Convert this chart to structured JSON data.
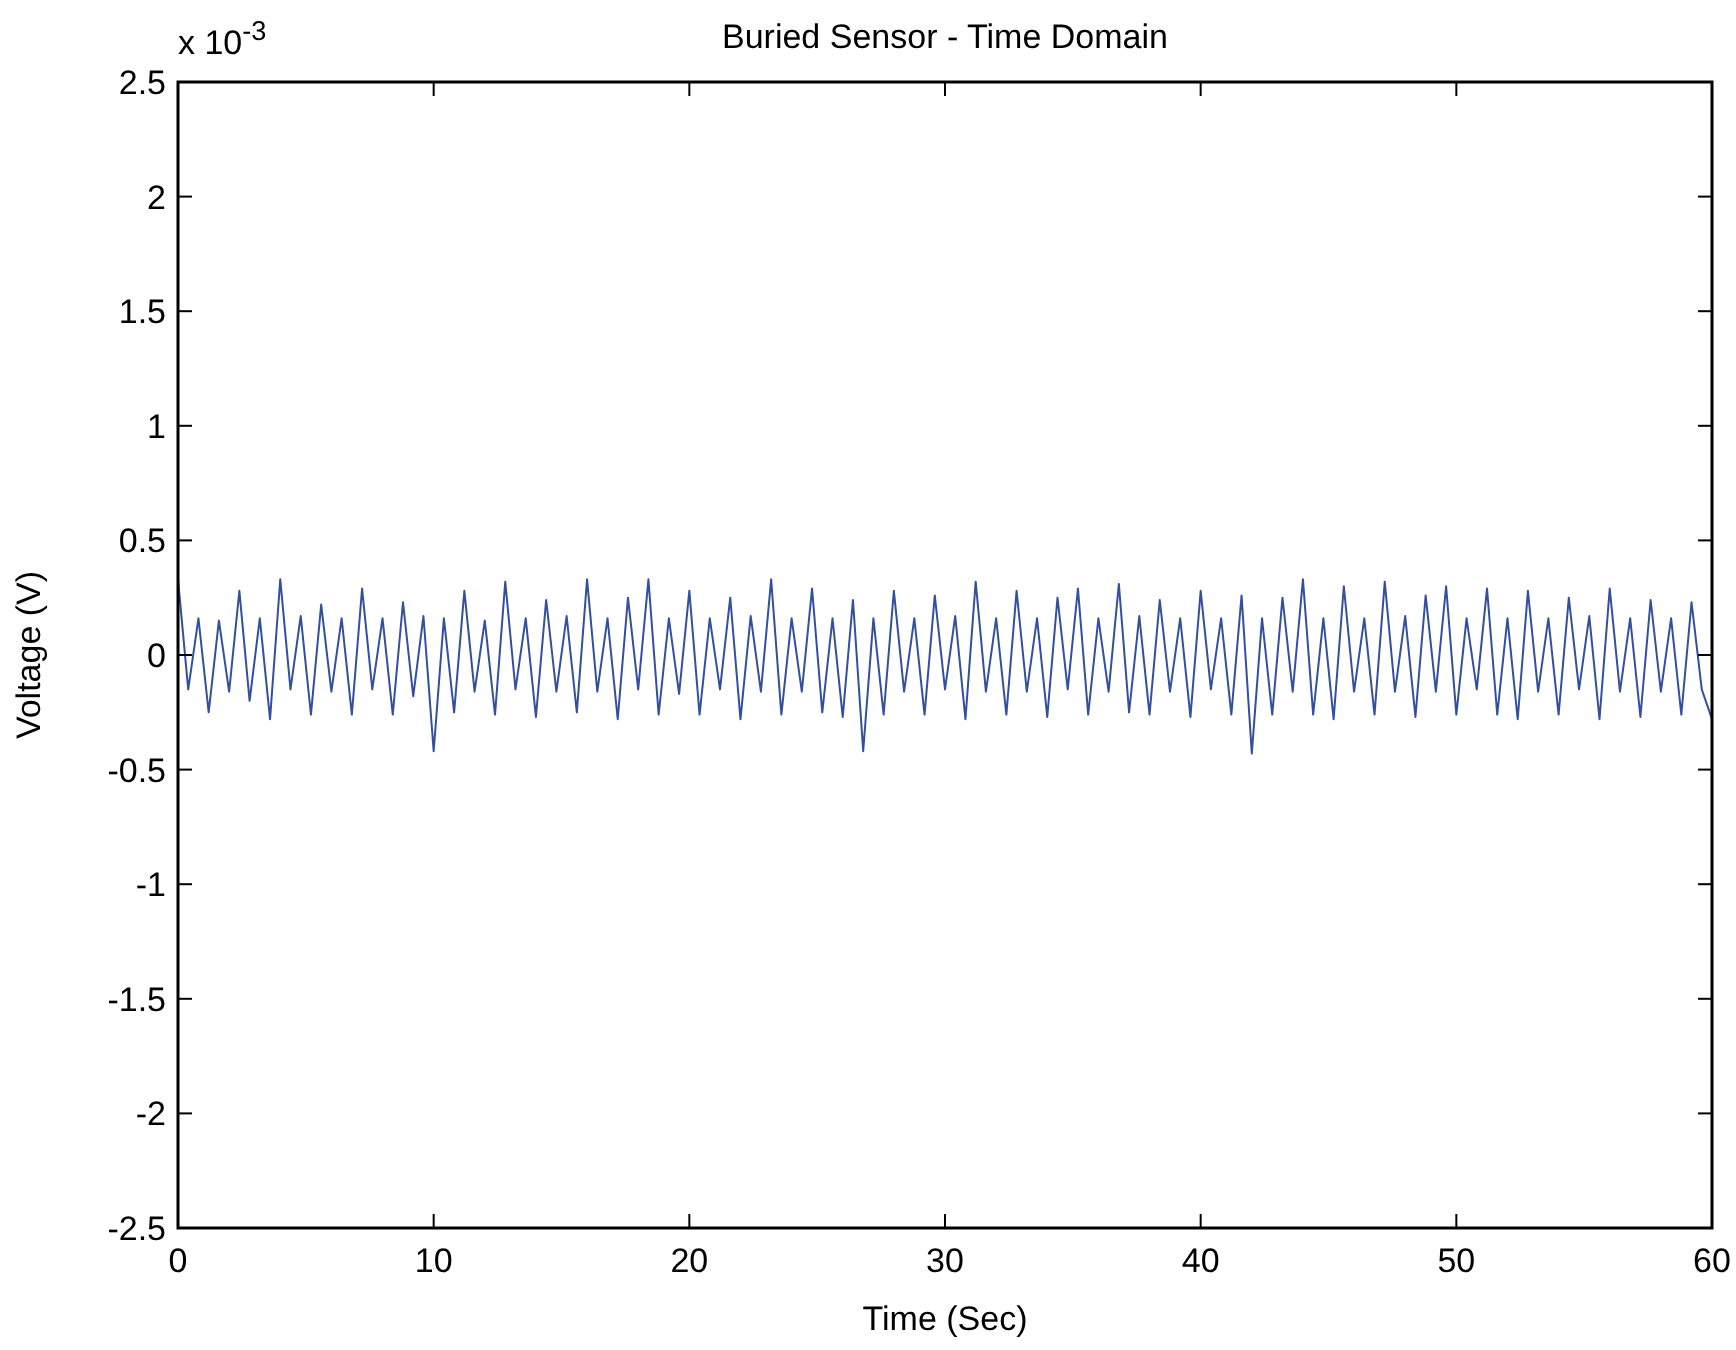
{
  "chart_data": {
    "type": "line",
    "title": "Buried Sensor - Time Domain",
    "xlabel": "Time (Sec)",
    "ylabel": "Voltage (V)",
    "annotations": [
      "x 10$^{-3}$"
    ],
    "xlim": [
      0,
      60
    ],
    "xticks": [
      0,
      10,
      20,
      30,
      40,
      50,
      60
    ],
    "ylim": [
      -2.5,
      2.5
    ],
    "yticks": [
      -2.5,
      -2,
      -1.5,
      -1,
      -0.5,
      0,
      0.5,
      1,
      1.5,
      2,
      2.5
    ],
    "grid": false,
    "series": [
      {
        "color": "#3350a0",
        "x": [
          0,
          0.4,
          0.8,
          1.2,
          1.6,
          2,
          2.4,
          2.8,
          3.2,
          3.6,
          4,
          4.4,
          4.8,
          5.2,
          5.6,
          6,
          6.4,
          6.8,
          7.2,
          7.6,
          8,
          8.4,
          8.8,
          9.2,
          9.6,
          10,
          10.4,
          10.8,
          11.2,
          11.6,
          12,
          12.4,
          12.8,
          13.2,
          13.6,
          14,
          14.4,
          14.8,
          15.2,
          15.6,
          16,
          16.4,
          16.8,
          17.2,
          17.6,
          18,
          18.4,
          18.8,
          19.2,
          19.6,
          20,
          20.4,
          20.8,
          21.2,
          21.6,
          22,
          22.4,
          22.8,
          23.2,
          23.6,
          24,
          24.4,
          24.8,
          25.2,
          25.6,
          26,
          26.4,
          26.8,
          27.2,
          27.6,
          28,
          28.4,
          28.8,
          29.2,
          29.6,
          30,
          30.4,
          30.8,
          31.2,
          31.6,
          32,
          32.4,
          32.8,
          33.2,
          33.6,
          34,
          34.4,
          34.8,
          35.2,
          35.6,
          36,
          36.4,
          36.8,
          37.2,
          37.6,
          38,
          38.4,
          38.8,
          39.2,
          39.6,
          40,
          40.4,
          40.8,
          41.2,
          41.6,
          42,
          42.4,
          42.8,
          43.2,
          43.6,
          44,
          44.4,
          44.8,
          45.2,
          45.6,
          46,
          46.4,
          46.8,
          47.2,
          47.6,
          48,
          48.4,
          48.8,
          49.2,
          49.6,
          50,
          50.4,
          50.8,
          51.2,
          51.6,
          52,
          52.4,
          52.8,
          53.2,
          53.6,
          54,
          54.4,
          54.8,
          55.2,
          55.6,
          56,
          56.4,
          56.8,
          57.2,
          57.6,
          58,
          58.4,
          58.8,
          59.2,
          59.6,
          60
        ],
        "values": [
          0.33,
          -0.15,
          0.16,
          -0.25,
          0.15,
          -0.16,
          0.28,
          -0.2,
          0.16,
          -0.28,
          0.33,
          -0.15,
          0.17,
          -0.26,
          0.22,
          -0.16,
          0.16,
          -0.26,
          0.29,
          -0.15,
          0.16,
          -0.26,
          0.23,
          -0.18,
          0.17,
          -0.42,
          0.16,
          -0.25,
          0.28,
          -0.16,
          0.15,
          -0.26,
          0.32,
          -0.15,
          0.16,
          -0.27,
          0.24,
          -0.16,
          0.17,
          -0.25,
          0.33,
          -0.16,
          0.16,
          -0.28,
          0.25,
          -0.15,
          0.33,
          -0.26,
          0.16,
          -0.17,
          0.28,
          -0.26,
          0.16,
          -0.15,
          0.25,
          -0.28,
          0.17,
          -0.16,
          0.33,
          -0.26,
          0.16,
          -0.16,
          0.29,
          -0.25,
          0.16,
          -0.27,
          0.24,
          -0.42,
          0.16,
          -0.26,
          0.28,
          -0.16,
          0.16,
          -0.26,
          0.26,
          -0.15,
          0.17,
          -0.28,
          0.32,
          -0.16,
          0.16,
          -0.26,
          0.28,
          -0.16,
          0.16,
          -0.27,
          0.25,
          -0.15,
          0.29,
          -0.26,
          0.16,
          -0.16,
          0.31,
          -0.25,
          0.17,
          -0.26,
          0.24,
          -0.16,
          0.16,
          -0.27,
          0.28,
          -0.15,
          0.16,
          -0.26,
          0.26,
          -0.43,
          0.16,
          -0.26,
          0.25,
          -0.16,
          0.33,
          -0.26,
          0.16,
          -0.28,
          0.3,
          -0.16,
          0.16,
          -0.26,
          0.32,
          -0.16,
          0.17,
          -0.27,
          0.26,
          -0.16,
          0.3,
          -0.26,
          0.16,
          -0.15,
          0.29,
          -0.26,
          0.16,
          -0.28,
          0.28,
          -0.16,
          0.16,
          -0.26,
          0.25,
          -0.15,
          0.17,
          -0.28,
          0.29,
          -0.16,
          0.16,
          -0.27,
          0.24,
          -0.16,
          0.16,
          -0.26,
          0.23,
          -0.15,
          -0.28
        ]
      }
    ]
  }
}
